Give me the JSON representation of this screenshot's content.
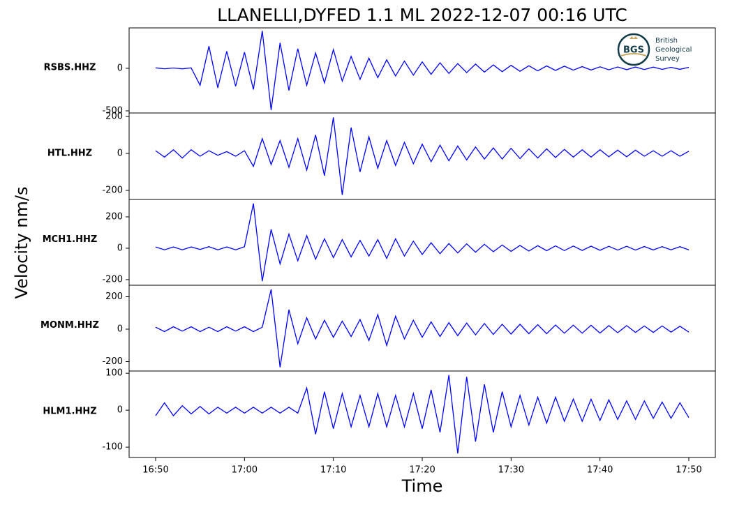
{
  "title": "LLANELLI,DYFED 1.1 ML   2022-12-07 00:16 UTC",
  "xlabel": "Time",
  "ylabel": "Velocity nm/s",
  "logo": {
    "abbr": "BGS",
    "lines": [
      "British",
      "Geological",
      "Survey"
    ]
  },
  "chart_data": [
    {
      "type": "line",
      "label": "RSBS.HHZ",
      "ylim": [
        -525,
        475
      ],
      "yticks": [
        -500,
        0
      ],
      "x": [
        "16:50",
        "16:51",
        "16:52",
        "16:53",
        "16:54",
        "16:55",
        "16:56",
        "16:57",
        "16:58",
        "16:59",
        "17:00",
        "17:01",
        "17:02",
        "17:03",
        "17:04",
        "17:05",
        "17:06",
        "17:07",
        "17:08",
        "17:09",
        "17:10",
        "17:11",
        "17:12",
        "17:13",
        "17:14",
        "17:15",
        "17:16",
        "17:17",
        "17:18",
        "17:19",
        "17:20",
        "17:21",
        "17:22",
        "17:23",
        "17:24",
        "17:25",
        "17:26",
        "17:27",
        "17:28",
        "17:29",
        "17:30",
        "17:31",
        "17:32",
        "17:33",
        "17:34",
        "17:35",
        "17:36",
        "17:37",
        "17:38",
        "17:39",
        "17:40",
        "17:41",
        "17:42",
        "17:43",
        "17:44",
        "17:45",
        "17:46",
        "17:47",
        "17:48",
        "17:49",
        "17:50"
      ],
      "series": [
        {
          "color": "#0000ff",
          "values": [
            5,
            -5,
            4,
            -6,
            5,
            -200,
            260,
            -230,
            200,
            -210,
            190,
            -250,
            440,
            -490,
            300,
            -260,
            230,
            -200,
            180,
            -170,
            220,
            -150,
            140,
            -130,
            120,
            -110,
            100,
            -90,
            85,
            -80,
            75,
            -70,
            65,
            -60,
            55,
            -50,
            50,
            -45,
            40,
            -40,
            35,
            -35,
            30,
            -30,
            28,
            -25,
            25,
            -22,
            20,
            -20,
            18,
            -18,
            16,
            -16,
            15,
            -14,
            14,
            -13,
            12,
            -12,
            12
          ]
        }
      ]
    },
    {
      "type": "line",
      "label": "HTL.HHZ",
      "ylim": [
        -249,
        219
      ],
      "yticks": [
        -200,
        0,
        200
      ],
      "x": [
        "16:50",
        "16:51",
        "16:52",
        "16:53",
        "16:54",
        "16:55",
        "16:56",
        "16:57",
        "16:58",
        "16:59",
        "17:00",
        "17:01",
        "17:02",
        "17:03",
        "17:04",
        "17:05",
        "17:06",
        "17:07",
        "17:08",
        "17:09",
        "17:10",
        "17:11",
        "17:12",
        "17:13",
        "17:14",
        "17:15",
        "17:16",
        "17:17",
        "17:18",
        "17:19",
        "17:20",
        "17:21",
        "17:22",
        "17:23",
        "17:24",
        "17:25",
        "17:26",
        "17:27",
        "17:28",
        "17:29",
        "17:30",
        "17:31",
        "17:32",
        "17:33",
        "17:34",
        "17:35",
        "17:36",
        "17:37",
        "17:38",
        "17:39",
        "17:40",
        "17:41",
        "17:42",
        "17:43",
        "17:44",
        "17:45",
        "17:46",
        "17:47",
        "17:48",
        "17:49",
        "17:50"
      ],
      "series": [
        {
          "color": "#0000ff",
          "values": [
            15,
            -20,
            20,
            -25,
            20,
            -15,
            15,
            -10,
            10,
            -15,
            15,
            -70,
            80,
            -60,
            70,
            -75,
            80,
            -90,
            100,
            -120,
            195,
            -225,
            140,
            -100,
            90,
            -80,
            70,
            -65,
            60,
            -55,
            50,
            -45,
            45,
            -40,
            40,
            -35,
            35,
            -30,
            30,
            -30,
            28,
            -28,
            25,
            -25,
            25,
            -22,
            22,
            -20,
            20,
            -20,
            20,
            -18,
            18,
            -18,
            18,
            -15,
            15,
            -15,
            15,
            -15,
            12
          ]
        }
      ]
    },
    {
      "type": "line",
      "label": "MCH1.HHZ",
      "ylim": [
        -236,
        311
      ],
      "yticks": [
        -200,
        0,
        200
      ],
      "x": [
        "16:50",
        "16:51",
        "16:52",
        "16:53",
        "16:54",
        "16:55",
        "16:56",
        "16:57",
        "16:58",
        "16:59",
        "17:00",
        "17:01",
        "17:02",
        "17:03",
        "17:04",
        "17:05",
        "17:06",
        "17:07",
        "17:08",
        "17:09",
        "17:10",
        "17:11",
        "17:12",
        "17:13",
        "17:14",
        "17:15",
        "17:16",
        "17:17",
        "17:18",
        "17:19",
        "17:20",
        "17:21",
        "17:22",
        "17:23",
        "17:24",
        "17:25",
        "17:26",
        "17:27",
        "17:28",
        "17:29",
        "17:30",
        "17:31",
        "17:32",
        "17:33",
        "17:34",
        "17:35",
        "17:36",
        "17:37",
        "17:38",
        "17:39",
        "17:40",
        "17:41",
        "17:42",
        "17:43",
        "17:44",
        "17:45",
        "17:46",
        "17:47",
        "17:48",
        "17:49",
        "17:50"
      ],
      "series": [
        {
          "color": "#0000ff",
          "values": [
            8,
            -10,
            8,
            -10,
            8,
            -8,
            10,
            -10,
            8,
            -10,
            10,
            285,
            -210,
            120,
            -100,
            90,
            -80,
            80,
            -70,
            60,
            -60,
            55,
            -55,
            50,
            -50,
            55,
            -65,
            60,
            -50,
            45,
            -40,
            35,
            -35,
            30,
            -30,
            28,
            -25,
            25,
            -22,
            20,
            -20,
            18,
            -18,
            16,
            -16,
            15,
            -15,
            14,
            -14,
            13,
            -13,
            12,
            -12,
            12,
            -12,
            11,
            -11,
            10,
            -10,
            10,
            -10
          ]
        }
      ]
    },
    {
      "type": "line",
      "label": "MONM.HHZ",
      "ylim": [
        -258,
        271
      ],
      "yticks": [
        -200,
        0,
        200
      ],
      "x": [
        "16:50",
        "16:51",
        "16:52",
        "16:53",
        "16:54",
        "16:55",
        "16:56",
        "16:57",
        "16:58",
        "16:59",
        "17:00",
        "17:01",
        "17:02",
        "17:03",
        "17:04",
        "17:05",
        "17:06",
        "17:07",
        "17:08",
        "17:09",
        "17:10",
        "17:11",
        "17:12",
        "17:13",
        "17:14",
        "17:15",
        "17:16",
        "17:17",
        "17:18",
        "17:19",
        "17:20",
        "17:21",
        "17:22",
        "17:23",
        "17:24",
        "17:25",
        "17:26",
        "17:27",
        "17:28",
        "17:29",
        "17:30",
        "17:31",
        "17:32",
        "17:33",
        "17:34",
        "17:35",
        "17:36",
        "17:37",
        "17:38",
        "17:39",
        "17:40",
        "17:41",
        "17:42",
        "17:43",
        "17:44",
        "17:45",
        "17:46",
        "17:47",
        "17:48",
        "17:49",
        "17:50"
      ],
      "series": [
        {
          "color": "#0000ff",
          "values": [
            12,
            -15,
            15,
            -12,
            15,
            -15,
            12,
            -15,
            15,
            -12,
            15,
            -15,
            12,
            245,
            -235,
            120,
            -90,
            70,
            -60,
            55,
            -50,
            50,
            -45,
            60,
            -70,
            90,
            -100,
            80,
            -60,
            55,
            -50,
            45,
            -45,
            40,
            -40,
            38,
            -35,
            35,
            -32,
            30,
            -30,
            30,
            -28,
            28,
            -28,
            26,
            -25,
            25,
            -25,
            24,
            -24,
            22,
            -22,
            22,
            -20,
            20,
            -20,
            20,
            -18,
            18,
            -18
          ]
        }
      ]
    },
    {
      "type": "line",
      "label": "HLM1.HHZ",
      "ylim": [
        -128,
        106
      ],
      "yticks": [
        -100,
        0,
        100
      ],
      "x": [
        "16:50",
        "16:51",
        "16:52",
        "16:53",
        "16:54",
        "16:55",
        "16:56",
        "16:57",
        "16:58",
        "16:59",
        "17:00",
        "17:01",
        "17:02",
        "17:03",
        "17:04",
        "17:05",
        "17:06",
        "17:07",
        "17:08",
        "17:09",
        "17:10",
        "17:11",
        "17:12",
        "17:13",
        "17:14",
        "17:15",
        "17:16",
        "17:17",
        "17:18",
        "17:19",
        "17:20",
        "17:21",
        "17:22",
        "17:23",
        "17:24",
        "17:25",
        "17:26",
        "17:27",
        "17:28",
        "17:29",
        "17:30",
        "17:31",
        "17:32",
        "17:33",
        "17:34",
        "17:35",
        "17:36",
        "17:37",
        "17:38",
        "17:39",
        "17:40",
        "17:41",
        "17:42",
        "17:43",
        "17:44",
        "17:45",
        "17:46",
        "17:47",
        "17:48",
        "17:49",
        "17:50"
      ],
      "xticks": [
        "16:50",
        "17:00",
        "17:10",
        "17:20",
        "17:30",
        "17:40",
        "17:50"
      ],
      "series": [
        {
          "color": "#0000ff",
          "values": [
            -15,
            20,
            -15,
            12,
            -10,
            10,
            -10,
            8,
            -8,
            8,
            -8,
            8,
            -8,
            8,
            -8,
            8,
            -8,
            60,
            -65,
            50,
            -50,
            45,
            -45,
            40,
            -45,
            45,
            -45,
            40,
            -45,
            45,
            -50,
            55,
            -60,
            95,
            -117,
            90,
            -85,
            70,
            -60,
            50,
            -45,
            40,
            -40,
            35,
            -35,
            35,
            -30,
            30,
            -30,
            30,
            -28,
            28,
            -25,
            25,
            -25,
            25,
            -22,
            22,
            -22,
            20,
            -20
          ]
        }
      ]
    }
  ]
}
